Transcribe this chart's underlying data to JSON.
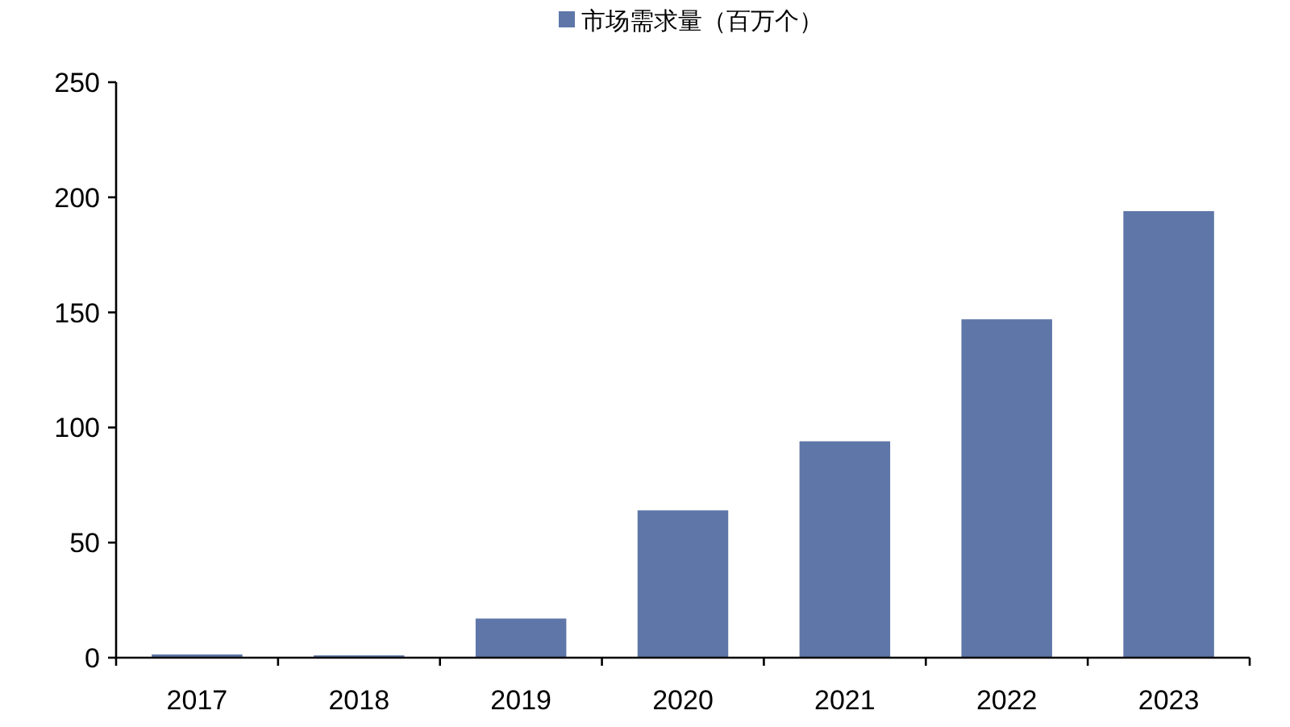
{
  "chart_data": {
    "type": "bar",
    "categories": [
      "2017",
      "2018",
      "2019",
      "2020",
      "2021",
      "2022",
      "2023"
    ],
    "series": [
      {
        "name": "市场需求量（百万个）",
        "color": "#5e76a8",
        "values": [
          1.4,
          1,
          17,
          64,
          94,
          147,
          194
        ]
      }
    ],
    "ylim": [
      0,
      250
    ],
    "yticks": [
      0,
      50,
      100,
      150,
      200,
      250
    ],
    "grid": false,
    "legend": "top"
  }
}
